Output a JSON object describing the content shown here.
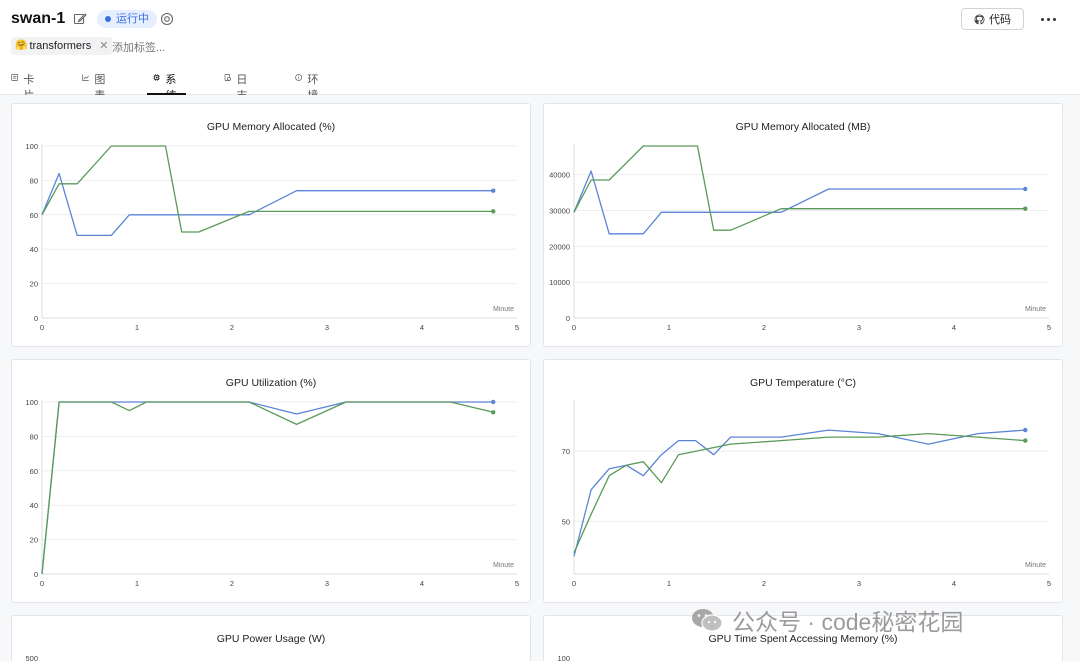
{
  "header": {
    "title": "swan-1",
    "status": "运行中",
    "code_button": "代码",
    "tag": "transformers",
    "tag_emoji": "🤗",
    "add_tag": "添加标签..."
  },
  "tabs": [
    {
      "label": "卡片",
      "icon": "card-icon"
    },
    {
      "label": "图表",
      "icon": "line-chart-icon"
    },
    {
      "label": "系统",
      "icon": "chip-icon",
      "active": true
    },
    {
      "label": "日志",
      "icon": "log-icon"
    },
    {
      "label": "环境",
      "icon": "info-icon"
    }
  ],
  "colors": {
    "blue": "#5b84d6",
    "green": "#5a9a5a",
    "accent": "#3b6fe0"
  },
  "watermark": "公众号 · code秘密花园",
  "chart_data": [
    {
      "type": "line",
      "title": "GPU Memory Allocated (%)",
      "xlabel": "Minute",
      "xlim": [
        0,
        5
      ],
      "ylim": [
        0,
        100
      ],
      "xticks": [
        0,
        1,
        2,
        3,
        4,
        5
      ],
      "yticks": [
        0,
        20,
        40,
        60,
        80,
        100
      ],
      "series": [
        {
          "color": "#5b84d6",
          "x": [
            0,
            0.18,
            0.37,
            0.73,
            0.92,
            2.18,
            2.68,
            4.75
          ],
          "y": [
            60,
            84,
            48,
            48,
            60,
            60,
            74,
            74
          ]
        },
        {
          "color": "#5a9a5a",
          "x": [
            0,
            0.18,
            0.37,
            0.73,
            1.3,
            1.47,
            1.65,
            2.18,
            4.75
          ],
          "y": [
            60,
            78,
            78,
            100,
            100,
            50,
            50,
            62,
            62
          ]
        }
      ]
    },
    {
      "type": "line",
      "title": "GPU Memory Allocated (MB)",
      "xlabel": "Minute",
      "xlim": [
        0,
        5
      ],
      "ylim": [
        0,
        48000
      ],
      "xticks": [
        0,
        1,
        2,
        3,
        4,
        5
      ],
      "yticks": [
        0,
        10000,
        20000,
        30000,
        40000
      ],
      "series": [
        {
          "color": "#5b84d6",
          "x": [
            0,
            0.18,
            0.37,
            0.73,
            0.92,
            2.18,
            2.68,
            4.75
          ],
          "y": [
            29500,
            41000,
            23500,
            23500,
            29500,
            29500,
            36000,
            36000
          ]
        },
        {
          "color": "#5a9a5a",
          "x": [
            0,
            0.18,
            0.37,
            0.73,
            1.3,
            1.47,
            1.65,
            2.18,
            4.75
          ],
          "y": [
            29500,
            38500,
            38500,
            48000,
            48000,
            24500,
            24500,
            30500,
            30500
          ]
        }
      ]
    },
    {
      "type": "line",
      "title": "GPU Utilization (%)",
      "xlabel": "Minute",
      "xlim": [
        0,
        5
      ],
      "ylim": [
        0,
        100
      ],
      "xticks": [
        0,
        1,
        2,
        3,
        4,
        5
      ],
      "yticks": [
        0,
        20,
        40,
        60,
        80,
        100
      ],
      "series": [
        {
          "color": "#5b84d6",
          "x": [
            0,
            0.18,
            2.18,
            2.68,
            3.2,
            4.3,
            4.75
          ],
          "y": [
            0,
            100,
            100,
            93,
            100,
            100,
            100
          ]
        },
        {
          "color": "#5a9a5a",
          "x": [
            0,
            0.18,
            0.73,
            0.92,
            1.1,
            2.18,
            2.68,
            3.2,
            4.3,
            4.75
          ],
          "y": [
            0,
            100,
            100,
            95,
            100,
            100,
            87,
            100,
            100,
            94
          ]
        }
      ]
    },
    {
      "type": "line",
      "title": "GPU Temperature (°C)",
      "xlabel": "Minute",
      "xlim": [
        0,
        5
      ],
      "ylim": [
        35,
        84
      ],
      "xticks": [
        0,
        1,
        2,
        3,
        4,
        5
      ],
      "yticks": [
        50,
        70
      ],
      "series": [
        {
          "color": "#5b84d6",
          "x": [
            0,
            0.18,
            0.37,
            0.55,
            0.73,
            0.92,
            1.1,
            1.28,
            1.47,
            1.65,
            2.18,
            2.68,
            3.2,
            3.73,
            4.25,
            4.75
          ],
          "y": [
            40,
            59,
            65,
            66,
            63,
            69,
            73,
            73,
            69,
            74,
            74,
            76,
            75,
            72,
            75,
            76
          ]
        },
        {
          "color": "#5a9a5a",
          "x": [
            0,
            0.18,
            0.37,
            0.55,
            0.73,
            0.92,
            1.1,
            1.65,
            2.18,
            2.68,
            3.2,
            3.73,
            4.25,
            4.75
          ],
          "y": [
            41,
            52,
            63,
            66,
            67,
            61,
            69,
            72,
            73,
            74,
            74,
            75,
            74,
            73
          ]
        }
      ]
    },
    {
      "type": "line",
      "title": "GPU Power Usage (W)",
      "xlim": [
        0,
        5
      ],
      "ylim": [
        0,
        500
      ],
      "yticks": [
        500
      ],
      "series": []
    },
    {
      "type": "line",
      "title": "GPU Time Spent Accessing Memory (%)",
      "xlim": [
        0,
        5
      ],
      "ylim": [
        0,
        100
      ],
      "yticks": [
        100
      ],
      "series": []
    }
  ]
}
